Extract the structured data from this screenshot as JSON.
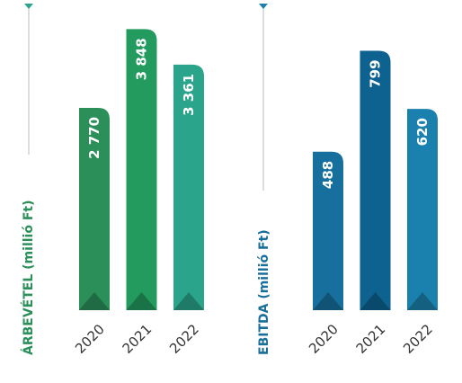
{
  "chart_data": [
    {
      "type": "bar",
      "y_label": "ÁRBEVÉTEL (millió Ft)",
      "categories": [
        "2020",
        "2021",
        "2022"
      ],
      "values": [
        2770,
        3848,
        3361
      ],
      "value_labels": [
        "2 770",
        "3 848",
        "3 361"
      ],
      "colors": [
        "#2b8f5a",
        "#239a5e",
        "#2aa48a"
      ],
      "label_color": "#2b8f5a",
      "ylim": [
        0,
        4000
      ]
    },
    {
      "type": "bar",
      "y_label": "EBITDA (millió Ft)",
      "categories": [
        "2020",
        "2021",
        "2022"
      ],
      "values": [
        488,
        799,
        620
      ],
      "value_labels": [
        "488",
        "799",
        "620"
      ],
      "colors": [
        "#166f9c",
        "#0d628f",
        "#1a80ad"
      ],
      "label_color": "#1a6f9a",
      "ylim": [
        0,
        900
      ]
    }
  ]
}
